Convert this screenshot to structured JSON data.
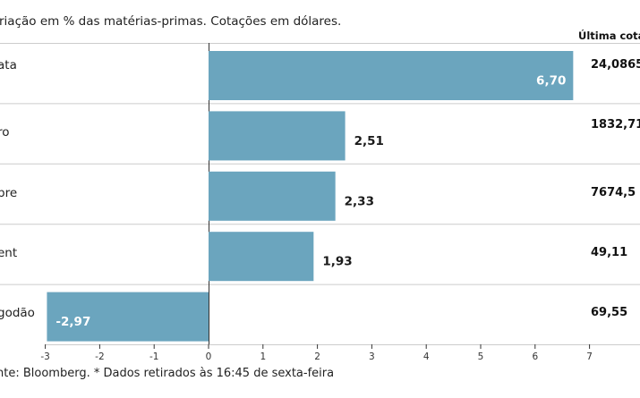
{
  "header": {
    "subtitle": "riação em % das matérias-primas. Cotações em dólares.",
    "quote_column": "Última cota"
  },
  "footer": {
    "source": "nte: Bloomberg.  * Dados retirados às 16:45 de sexta-feira"
  },
  "colors": {
    "bar": "#6ba5be",
    "grid": "#cccccc",
    "axis": "#333333"
  },
  "chart_data": {
    "type": "bar",
    "orientation": "horizontal",
    "categories": [
      "ata",
      "ro",
      "bre",
      "ent",
      "godão"
    ],
    "values": [
      6.7,
      2.51,
      2.33,
      1.93,
      -2.97
    ],
    "value_labels": [
      "6,70",
      "2,51",
      "2,33",
      "1,93",
      "-2,97"
    ],
    "quotes": [
      "24,0865",
      "1832,71",
      "7674,5",
      "49,11",
      "69,55"
    ],
    "xlim": [
      -3,
      7
    ],
    "xticks": [
      "-3",
      "-2",
      "-1",
      "0",
      "1",
      "2",
      "3",
      "4",
      "5",
      "6",
      "7"
    ],
    "grid": true
  }
}
